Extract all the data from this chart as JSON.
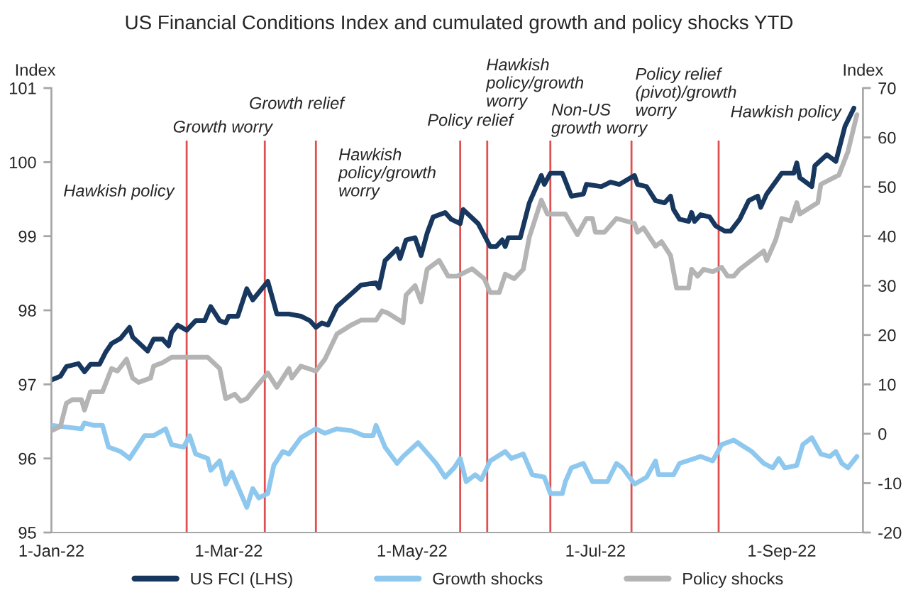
{
  "chart_data": {
    "type": "line",
    "title": "US Financial Conditions Index and cumulated growth and policy shocks YTD",
    "ylabel": "Index",
    "y2label": "Index",
    "xlim": [
      "2022-01-01",
      "2022-09-28"
    ],
    "xticks": [
      {
        "value": "2022-01-01",
        "label": "1-Jan-22"
      },
      {
        "value": "2022-03-01",
        "label": "1-Mar-22"
      },
      {
        "value": "2022-05-01",
        "label": "1-May-22"
      },
      {
        "value": "2022-07-01",
        "label": "1-Jul-22"
      },
      {
        "value": "2022-09-01",
        "label": "1-Sep-22"
      }
    ],
    "ylim": [
      95,
      101
    ],
    "yticks": [
      95,
      96,
      97,
      98,
      99,
      100,
      101
    ],
    "y2lim": [
      -20,
      70
    ],
    "y2ticks": [
      -20,
      -10,
      0,
      10,
      20,
      30,
      40,
      50,
      60,
      70
    ],
    "legend": "bottom",
    "series": [
      {
        "name": "US FCI (LHS)",
        "color": "#17375e",
        "axis": "y",
        "x": [
          "2022-01-01",
          "2022-01-04",
          "2022-01-06",
          "2022-01-10",
          "2022-01-12",
          "2022-01-14",
          "2022-01-17",
          "2022-01-19",
          "2022-01-21",
          "2022-01-24",
          "2022-01-27",
          "2022-01-28",
          "2022-02-02",
          "2022-02-04",
          "2022-02-07",
          "2022-02-09",
          "2022-02-10",
          "2022-02-12",
          "2022-02-15",
          "2022-02-18",
          "2022-02-21",
          "2022-02-23",
          "2022-02-26",
          "2022-02-28",
          "2022-03-01",
          "2022-03-04",
          "2022-03-07",
          "2022-03-09",
          "2022-03-14",
          "2022-03-17",
          "2022-03-21",
          "2022-03-25",
          "2022-03-28",
          "2022-03-30",
          "2022-04-01",
          "2022-04-03",
          "2022-04-06",
          "2022-04-11",
          "2022-04-14",
          "2022-04-19",
          "2022-04-20",
          "2022-04-22",
          "2022-04-26",
          "2022-04-27",
          "2022-04-29",
          "2022-05-02",
          "2022-05-04",
          "2022-05-06",
          "2022-05-08",
          "2022-05-12",
          "2022-05-14",
          "2022-05-17",
          "2022-05-18",
          "2022-05-23",
          "2022-05-27",
          "2022-05-29",
          "2022-05-31",
          "2022-06-01",
          "2022-06-02",
          "2022-06-06",
          "2022-06-09",
          "2022-06-13",
          "2022-06-14",
          "2022-06-16",
          "2022-06-20",
          "2022-06-23",
          "2022-06-27",
          "2022-06-28",
          "2022-07-03",
          "2022-07-06",
          "2022-07-09",
          "2022-07-14",
          "2022-07-15",
          "2022-07-18",
          "2022-07-21",
          "2022-07-24",
          "2022-07-26",
          "2022-07-27",
          "2022-07-29",
          "2022-08-01",
          "2022-08-02",
          "2022-08-03",
          "2022-08-05",
          "2022-08-08",
          "2022-08-10",
          "2022-08-13",
          "2022-08-15",
          "2022-08-18",
          "2022-08-21",
          "2022-08-24",
          "2022-08-25",
          "2022-08-27",
          "2022-09-01",
          "2022-09-05",
          "2022-09-06",
          "2022-09-07",
          "2022-09-11",
          "2022-09-12",
          "2022-09-16",
          "2022-09-19",
          "2022-09-22",
          "2022-09-25"
        ],
        "values": [
          97.06,
          97.11,
          97.24,
          97.28,
          97.17,
          97.27,
          97.27,
          97.43,
          97.55,
          97.62,
          97.77,
          97.64,
          97.45,
          97.61,
          97.61,
          97.52,
          97.7,
          97.8,
          97.73,
          97.86,
          97.86,
          98.05,
          97.86,
          97.83,
          97.92,
          97.92,
          98.29,
          98.14,
          98.39,
          97.95,
          97.95,
          97.92,
          97.86,
          97.77,
          97.83,
          97.8,
          98.05,
          98.23,
          98.34,
          98.37,
          98.3,
          98.67,
          98.83,
          98.7,
          98.95,
          98.98,
          98.74,
          99.04,
          99.26,
          99.32,
          99.23,
          99.17,
          99.36,
          99.17,
          98.86,
          98.86,
          98.95,
          98.86,
          98.98,
          98.98,
          99.45,
          99.82,
          99.7,
          99.85,
          99.85,
          99.54,
          99.57,
          99.7,
          99.67,
          99.73,
          99.7,
          99.82,
          99.7,
          99.67,
          99.48,
          99.45,
          99.54,
          99.36,
          99.23,
          99.2,
          99.32,
          99.2,
          99.29,
          99.26,
          99.14,
          99.07,
          99.07,
          99.23,
          99.48,
          99.54,
          99.39,
          99.57,
          99.85,
          99.85,
          99.99,
          99.79,
          99.67,
          99.95,
          100.1,
          100.01,
          100.48,
          100.73
        ]
      },
      {
        "name": "Growth shocks",
        "color": "#8fc8ee",
        "axis": "y2",
        "x": [
          "2022-01-01",
          "2022-01-04",
          "2022-01-11",
          "2022-01-12",
          "2022-01-15",
          "2022-01-18",
          "2022-01-20",
          "2022-01-24",
          "2022-01-27",
          "2022-02-01",
          "2022-02-04",
          "2022-02-08",
          "2022-02-10",
          "2022-02-14",
          "2022-02-16",
          "2022-02-18",
          "2022-02-22",
          "2022-02-23",
          "2022-02-26",
          "2022-02-28",
          "2022-03-02",
          "2022-03-07",
          "2022-03-09",
          "2022-03-11",
          "2022-03-14",
          "2022-03-16",
          "2022-03-19",
          "2022-03-21",
          "2022-03-25",
          "2022-03-30",
          "2022-04-02",
          "2022-04-06",
          "2022-04-11",
          "2022-04-15",
          "2022-04-18",
          "2022-04-19",
          "2022-04-22",
          "2022-04-26",
          "2022-04-28",
          "2022-05-03",
          "2022-05-09",
          "2022-05-12",
          "2022-05-15",
          "2022-05-17",
          "2022-05-19",
          "2022-05-22",
          "2022-05-24",
          "2022-05-27",
          "2022-06-01",
          "2022-06-03",
          "2022-06-07",
          "2022-06-10",
          "2022-06-14",
          "2022-06-16",
          "2022-06-20",
          "2022-06-21",
          "2022-06-23",
          "2022-06-27",
          "2022-06-30",
          "2022-07-05",
          "2022-07-08",
          "2022-07-10",
          "2022-07-14",
          "2022-07-18",
          "2022-07-21",
          "2022-07-22",
          "2022-07-27",
          "2022-07-29",
          "2022-08-05",
          "2022-08-09",
          "2022-08-12",
          "2022-08-16",
          "2022-08-22",
          "2022-08-26",
          "2022-08-29",
          "2022-08-31",
          "2022-09-02",
          "2022-09-06",
          "2022-09-08",
          "2022-09-11",
          "2022-09-14",
          "2022-09-17",
          "2022-09-19",
          "2022-09-21",
          "2022-09-23",
          "2022-09-26"
        ],
        "values": [
          1.7,
          1.5,
          1.0,
          2.2,
          1.7,
          1.7,
          -2.7,
          -3.6,
          -5.0,
          -0.4,
          -0.4,
          1.0,
          -2.2,
          -2.7,
          -0.4,
          -4.1,
          -5.0,
          -7.4,
          -5.5,
          -10.2,
          -7.8,
          -14.9,
          -11.1,
          -13.0,
          -12.1,
          -6.4,
          -3.6,
          -4.1,
          -0.8,
          1.0,
          0.1,
          1.0,
          0.6,
          -0.4,
          -0.4,
          1.7,
          -2.7,
          -6.0,
          -4.6,
          -1.8,
          -6.0,
          -8.8,
          -6.9,
          -5.0,
          -9.7,
          -8.3,
          -9.3,
          -5.5,
          -3.6,
          -5.0,
          -4.1,
          -8.3,
          -8.8,
          -12.1,
          -12.1,
          -9.7,
          -6.9,
          -6.0,
          -9.7,
          -9.7,
          -6.0,
          -6.9,
          -10.2,
          -8.8,
          -5.5,
          -8.3,
          -8.3,
          -6.0,
          -4.6,
          -5.5,
          -2.2,
          -1.3,
          -3.6,
          -6.0,
          -6.9,
          -5.0,
          -6.9,
          -6.4,
          -2.2,
          -0.8,
          -4.1,
          -4.6,
          -3.6,
          -6.0,
          -6.9,
          -4.6
        ]
      },
      {
        "name": "Policy shocks",
        "color": "#b4b4b4",
        "axis": "y2",
        "x": [
          "2022-01-01",
          "2022-01-04",
          "2022-01-06",
          "2022-01-08",
          "2022-01-11",
          "2022-01-12",
          "2022-01-14",
          "2022-01-18",
          "2022-01-21",
          "2022-01-23",
          "2022-01-26",
          "2022-01-28",
          "2022-01-30",
          "2022-02-03",
          "2022-02-04",
          "2022-02-07",
          "2022-02-10",
          "2022-02-12",
          "2022-02-16",
          "2022-02-22",
          "2022-02-26",
          "2022-02-28",
          "2022-03-03",
          "2022-03-05",
          "2022-03-07",
          "2022-03-10",
          "2022-03-14",
          "2022-03-17",
          "2022-03-21",
          "2022-03-22",
          "2022-03-25",
          "2022-03-30",
          "2022-04-02",
          "2022-04-06",
          "2022-04-11",
          "2022-04-14",
          "2022-04-19",
          "2022-04-21",
          "2022-04-23",
          "2022-04-28",
          "2022-04-29",
          "2022-05-02",
          "2022-05-04",
          "2022-05-06",
          "2022-05-10",
          "2022-05-13",
          "2022-05-16",
          "2022-05-18",
          "2022-05-21",
          "2022-05-25",
          "2022-05-27",
          "2022-05-30",
          "2022-06-01",
          "2022-06-04",
          "2022-06-07",
          "2022-06-09",
          "2022-06-13",
          "2022-06-15",
          "2022-06-21",
          "2022-06-25",
          "2022-06-28",
          "2022-06-30",
          "2022-07-01",
          "2022-07-04",
          "2022-07-08",
          "2022-07-14",
          "2022-07-15",
          "2022-07-17",
          "2022-07-21",
          "2022-07-23",
          "2022-07-26",
          "2022-07-28",
          "2022-08-01",
          "2022-08-02",
          "2022-08-04",
          "2022-08-06",
          "2022-08-09",
          "2022-08-12",
          "2022-08-14",
          "2022-08-16",
          "2022-08-18",
          "2022-08-21",
          "2022-08-26",
          "2022-08-27",
          "2022-08-30",
          "2022-09-01",
          "2022-09-04",
          "2022-09-06",
          "2022-09-07",
          "2022-09-13",
          "2022-09-14",
          "2022-09-20",
          "2022-09-23",
          "2022-09-26"
        ],
        "values": [
          0.6,
          1.5,
          6.2,
          6.9,
          6.9,
          4.8,
          8.5,
          8.5,
          13.2,
          12.7,
          15.1,
          11.3,
          10.4,
          11.3,
          13.7,
          14.4,
          15.5,
          15.5,
          15.5,
          15.5,
          13.2,
          7.1,
          8.0,
          6.6,
          7.1,
          9.4,
          12.3,
          9.4,
          13.2,
          11.3,
          13.7,
          12.7,
          15.1,
          20.2,
          22.1,
          23.0,
          23.0,
          24.9,
          24.4,
          22.5,
          28.1,
          30.0,
          26.7,
          33.3,
          35.1,
          31.9,
          31.9,
          32.5,
          33.4,
          31.4,
          28.6,
          28.6,
          32.3,
          31.4,
          33.3,
          39.8,
          47.3,
          44.5,
          44.5,
          40.3,
          43.6,
          43.6,
          40.8,
          40.8,
          43.6,
          42.6,
          40.8,
          41.7,
          38.0,
          38.9,
          36.1,
          29.5,
          29.5,
          33.3,
          31.9,
          33.3,
          32.8,
          33.7,
          31.9,
          31.9,
          33.3,
          34.7,
          37.0,
          35.1,
          39.3,
          43.6,
          43.1,
          46.8,
          44.5,
          46.8,
          50.5,
          52.4,
          57.1,
          64.6
        ]
      }
    ],
    "ref_lines": [
      {
        "axis": "x",
        "value": "2022-02-15",
        "color": "#e05050"
      },
      {
        "axis": "x",
        "value": "2022-03-13",
        "color": "#e05050"
      },
      {
        "axis": "x",
        "value": "2022-03-30",
        "color": "#e05050"
      },
      {
        "axis": "x",
        "value": "2022-05-17",
        "color": "#e05050"
      },
      {
        "axis": "x",
        "value": "2022-05-26",
        "color": "#e05050"
      },
      {
        "axis": "x",
        "value": "2022-06-16",
        "color": "#e05050"
      },
      {
        "axis": "x",
        "value": "2022-07-13",
        "color": "#e05050"
      },
      {
        "axis": "x",
        "value": "2022-08-11",
        "color": "#e05050"
      }
    ],
    "annotations": [
      "Hawkish policy",
      "Growth worry",
      "Growth relief",
      "Hawkish\npolicy/growth\nworry",
      "Policy relief",
      "Hawkish\npolicy/growth\nworry",
      "Non-US\ngrowth worry",
      "Policy relief\n(pivot)/growth\nworry",
      "Hawkish policy"
    ]
  }
}
